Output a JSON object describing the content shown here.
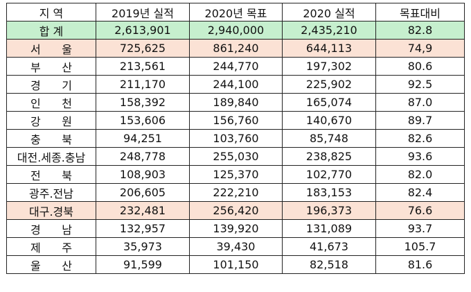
{
  "table": {
    "headers": [
      "지 역",
      "2019년 실적",
      "2020년 목표",
      "2020 실적",
      "목표대비"
    ],
    "total": {
      "region": "합 계",
      "values": [
        "2,613,901",
        "2,940,000",
        "2,435,210",
        "82.8"
      ]
    },
    "rows": [
      {
        "region": "서      울",
        "values": [
          "725,625",
          "861,240",
          "644,113",
          "74,9"
        ],
        "highlight": true
      },
      {
        "region": "부      산",
        "values": [
          "213,561",
          "244,770",
          "197,302",
          "80.6"
        ],
        "highlight": false
      },
      {
        "region": "경      기",
        "values": [
          "211,170",
          "244,100",
          "225,902",
          "92.5"
        ],
        "highlight": false
      },
      {
        "region": "인      천",
        "values": [
          "158,392",
          "189,840",
          "165,074",
          "87.0"
        ],
        "highlight": false
      },
      {
        "region": "강      원",
        "values": [
          "153,606",
          "156,760",
          "140,670",
          "89.7"
        ],
        "highlight": false
      },
      {
        "region": "충      북",
        "values": [
          "94,251",
          "103,760",
          "85,748",
          "82.6"
        ],
        "highlight": false
      },
      {
        "region": "대전.세종.충남",
        "values": [
          "248,778",
          "255,030",
          "238,825",
          "93.6"
        ],
        "highlight": false
      },
      {
        "region": "전      북",
        "values": [
          "108,903",
          "125,370",
          "102,770",
          "82.0"
        ],
        "highlight": false
      },
      {
        "region": "광주.전남",
        "values": [
          "206,605",
          "222,210",
          "183,153",
          "82.4"
        ],
        "highlight": false
      },
      {
        "region": "대구.경북",
        "values": [
          "232,481",
          "256,420",
          "196,373",
          "76.6"
        ],
        "highlight": true
      },
      {
        "region": "경      남",
        "values": [
          "132,957",
          "139,920",
          "131,089",
          "93.7"
        ],
        "highlight": false
      },
      {
        "region": "제      주",
        "values": [
          "35,973",
          "39,430",
          "41,673",
          "105.7"
        ],
        "highlight": false
      },
      {
        "region": "울      산",
        "values": [
          "91,599",
          "101,150",
          "82,518",
          "81.6"
        ],
        "highlight": false
      }
    ]
  },
  "colors": {
    "total_row": "#c6efce",
    "highlight_row": "#fbe2d5",
    "border": "#222222"
  }
}
